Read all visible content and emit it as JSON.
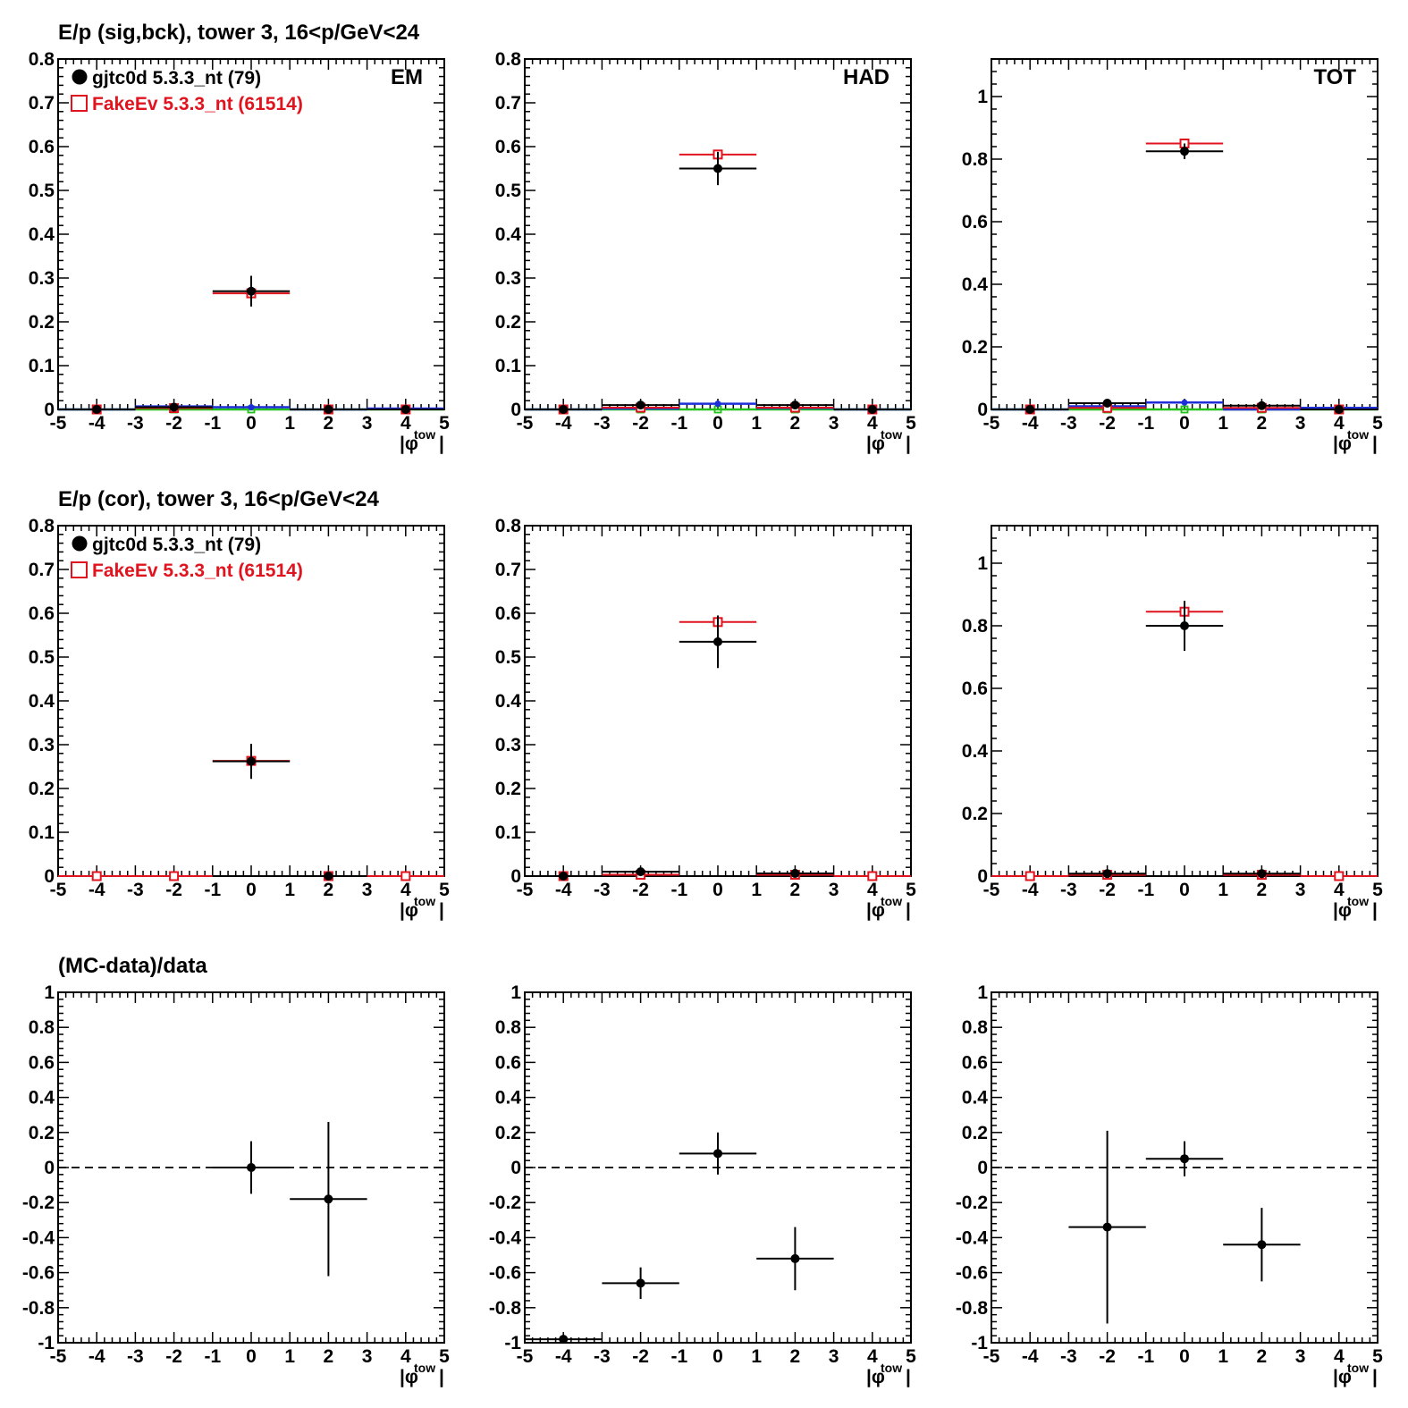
{
  "colors": {
    "data": "#000000",
    "mc": "#e0141e",
    "blue": "#1f2fd8",
    "green": "#22c01a",
    "orange": "#e08a10",
    "frame": "#000000"
  },
  "row_titles": [
    "E/p (sig,bck), tower 3, 16<p/GeV<24",
    "E/p (cor), tower 3, 16<p/GeV<24",
    "(MC-data)/data"
  ],
  "legend": {
    "data_label": "gjtc0d 5.3.3_nt (79)",
    "mc_label": "FakeEv 5.3.3_nt (61514)"
  },
  "xlabel": {
    "main": "|φ",
    "sub": "tow",
    "end": "|"
  },
  "chart_data": [
    {
      "type": "scatter",
      "row": 0,
      "col": 0,
      "corner_label": "EM",
      "xlim": [
        -5,
        5
      ],
      "ylim": [
        0,
        0.8
      ],
      "yticks": [
        "0",
        "0.1",
        "0.2",
        "0.3",
        "0.4",
        "0.5",
        "0.6",
        "0.7",
        "0.8"
      ],
      "xticks": [
        "-5",
        "-4",
        "-3",
        "-2",
        "-1",
        "0",
        "1",
        "2",
        "3",
        "4",
        "5"
      ],
      "series": [
        {
          "name": "gjtc0d 5.3.3_nt (79)",
          "color": "#000000",
          "marker": "dot",
          "points": [
            {
              "x": -4,
              "y": 0.0,
              "err": 0.0
            },
            {
              "x": -2,
              "y": 0.005,
              "err": 0.003
            },
            {
              "x": 0,
              "y": 0.27,
              "err": 0.035
            },
            {
              "x": 2,
              "y": 0.0,
              "err": 0.0
            },
            {
              "x": 4,
              "y": 0.0,
              "err": 0.0
            }
          ]
        },
        {
          "name": "FakeEv 5.3.3_nt (61514)",
          "color": "#e0141e",
          "marker": "open-square",
          "points": [
            {
              "x": -4,
              "y": 0.0,
              "err": 0.0
            },
            {
              "x": -2,
              "y": 0.003,
              "err": 0.0
            },
            {
              "x": 0,
              "y": 0.265,
              "err": 0.0
            },
            {
              "x": 2,
              "y": 0.0,
              "err": 0.0
            },
            {
              "x": 4,
              "y": 0.0,
              "err": 0.0
            }
          ]
        },
        {
          "color": "#1f2fd8",
          "marker": "small-dot",
          "points": [
            {
              "x": -4,
              "y": 0.0,
              "err": 0.0
            },
            {
              "x": -2,
              "y": 0.007,
              "err": 0.0
            },
            {
              "x": 0,
              "y": 0.005,
              "err": 0.0
            },
            {
              "x": 2,
              "y": 0.0,
              "err": 0.0
            },
            {
              "x": 4,
              "y": 0.002,
              "err": 0.0
            }
          ]
        },
        {
          "color": "#22c01a",
          "marker": "small-open",
          "points": [
            {
              "x": -4,
              "y": 0.0,
              "err": 0.0
            },
            {
              "x": -2,
              "y": 0.0,
              "err": 0.0
            },
            {
              "x": 0,
              "y": 0.0,
              "err": 0.0
            },
            {
              "x": 2,
              "y": 0.0,
              "err": 0.0
            },
            {
              "x": 4,
              "y": 0.0,
              "err": 0.0
            }
          ]
        }
      ]
    },
    {
      "type": "scatter",
      "row": 0,
      "col": 1,
      "corner_label": "HAD",
      "xlim": [
        -5,
        5
      ],
      "ylim": [
        0,
        0.8
      ],
      "yticks": [
        "0",
        "0.1",
        "0.2",
        "0.3",
        "0.4",
        "0.5",
        "0.6",
        "0.7",
        "0.8"
      ],
      "xticks": [
        "-5",
        "-4",
        "-3",
        "-2",
        "-1",
        "0",
        "1",
        "2",
        "3",
        "4",
        "5"
      ],
      "series": [
        {
          "name": "gjtc0d 5.3.3_nt (79)",
          "color": "#000000",
          "marker": "dot",
          "points": [
            {
              "x": -4,
              "y": 0.0,
              "err": 0.0
            },
            {
              "x": -2,
              "y": 0.01,
              "err": 0.003
            },
            {
              "x": 0,
              "y": 0.55,
              "err": 0.038
            },
            {
              "x": 2,
              "y": 0.01,
              "err": 0.003
            },
            {
              "x": 4,
              "y": 0.0,
              "err": 0.0
            }
          ]
        },
        {
          "name": "FakeEv 5.3.3_nt (61514)",
          "color": "#e0141e",
          "marker": "open-square",
          "points": [
            {
              "x": -4,
              "y": 0.0,
              "err": 0.0
            },
            {
              "x": -2,
              "y": 0.004,
              "err": 0.0
            },
            {
              "x": 0,
              "y": 0.582,
              "err": 0.0
            },
            {
              "x": 2,
              "y": 0.004,
              "err": 0.0
            },
            {
              "x": 4,
              "y": 0.0,
              "err": 0.0
            }
          ]
        },
        {
          "color": "#1f2fd8",
          "marker": "small-dot",
          "points": [
            {
              "x": -4,
              "y": 0.0,
              "err": 0.0
            },
            {
              "x": -2,
              "y": 0.002,
              "err": 0.0
            },
            {
              "x": 0,
              "y": 0.013,
              "err": 0.0
            },
            {
              "x": 2,
              "y": 0.003,
              "err": 0.0
            },
            {
              "x": 4,
              "y": 0.0,
              "err": 0.0
            }
          ]
        },
        {
          "color": "#22c01a",
          "marker": "small-open",
          "points": [
            {
              "x": -4,
              "y": 0.0,
              "err": 0.0
            },
            {
              "x": -2,
              "y": 0.0,
              "err": 0.0
            },
            {
              "x": 0,
              "y": 0.0,
              "err": 0.0
            },
            {
              "x": 2,
              "y": 0.0,
              "err": 0.0
            },
            {
              "x": 4,
              "y": 0.0,
              "err": 0.0
            }
          ]
        }
      ]
    },
    {
      "type": "scatter",
      "row": 0,
      "col": 2,
      "corner_label": "TOT",
      "xlim": [
        -5,
        5
      ],
      "ylim": [
        0,
        1.12
      ],
      "yticks": [
        "0",
        "0.2",
        "0.4",
        "0.6",
        "0.8",
        "1"
      ],
      "xticks": [
        "-5",
        "-4",
        "-3",
        "-2",
        "-1",
        "0",
        "1",
        "2",
        "3",
        "4",
        "5"
      ],
      "series": [
        {
          "name": "gjtc0d 5.3.3_nt (79)",
          "color": "#000000",
          "marker": "dot",
          "points": [
            {
              "x": -4,
              "y": 0.0,
              "err": 0.0
            },
            {
              "x": -2,
              "y": 0.02,
              "err": 0.004
            },
            {
              "x": 0,
              "y": 0.825,
              "err": 0.025
            },
            {
              "x": 2,
              "y": 0.012,
              "err": 0.004
            },
            {
              "x": 4,
              "y": 0.0,
              "err": 0.0
            }
          ]
        },
        {
          "name": "FakeEv 5.3.3_nt (61514)",
          "color": "#e0141e",
          "marker": "open-square",
          "points": [
            {
              "x": -4,
              "y": 0.0,
              "err": 0.0
            },
            {
              "x": -2,
              "y": 0.005,
              "err": 0.0
            },
            {
              "x": 0,
              "y": 0.85,
              "err": 0.0
            },
            {
              "x": 2,
              "y": 0.005,
              "err": 0.0
            },
            {
              "x": 4,
              "y": 0.0,
              "err": 0.0
            }
          ]
        },
        {
          "color": "#1f2fd8",
          "marker": "small-dot",
          "points": [
            {
              "x": -4,
              "y": 0.0,
              "err": 0.0
            },
            {
              "x": -2,
              "y": 0.01,
              "err": 0.0
            },
            {
              "x": 0,
              "y": 0.022,
              "err": 0.0
            },
            {
              "x": 2,
              "y": 0.0,
              "err": 0.0
            },
            {
              "x": 4,
              "y": 0.005,
              "err": 0.0
            }
          ]
        },
        {
          "color": "#22c01a",
          "marker": "small-open",
          "points": [
            {
              "x": -4,
              "y": 0.0,
              "err": 0.0
            },
            {
              "x": -2,
              "y": 0.0,
              "err": 0.0
            },
            {
              "x": 0,
              "y": 0.0,
              "err": 0.0
            },
            {
              "x": 2,
              "y": 0.0,
              "err": 0.0
            },
            {
              "x": 4,
              "y": 0.0,
              "err": 0.0
            }
          ]
        }
      ]
    },
    {
      "type": "scatter",
      "row": 1,
      "col": 0,
      "xlim": [
        -5,
        5
      ],
      "ylim": [
        0,
        0.8
      ],
      "yticks": [
        "0",
        "0.1",
        "0.2",
        "0.3",
        "0.4",
        "0.5",
        "0.6",
        "0.7",
        "0.8"
      ],
      "xticks": [
        "-5",
        "-4",
        "-3",
        "-2",
        "-1",
        "0",
        "1",
        "2",
        "3",
        "4",
        "5"
      ],
      "series": [
        {
          "name": "gjtc0d 5.3.3_nt (79)",
          "color": "#000000",
          "marker": "dot",
          "points": [
            {
              "x": 0,
              "y": 0.262,
              "err": 0.04
            },
            {
              "x": 2,
              "y": 0.0,
              "err": 0.003
            }
          ]
        },
        {
          "name": "FakeEv 5.3.3_nt (61514)",
          "color": "#e0141e",
          "marker": "open-square",
          "points": [
            {
              "x": -4,
              "y": 0.0,
              "err": 0.0
            },
            {
              "x": -2,
              "y": 0.0,
              "err": 0.0
            },
            {
              "x": 0,
              "y": 0.263,
              "err": 0.0
            },
            {
              "x": 2,
              "y": 0.0,
              "err": 0.0
            },
            {
              "x": 4,
              "y": 0.0,
              "err": 0.0
            }
          ]
        }
      ]
    },
    {
      "type": "scatter",
      "row": 1,
      "col": 1,
      "xlim": [
        -5,
        5
      ],
      "ylim": [
        0,
        0.8
      ],
      "yticks": [
        "0",
        "0.1",
        "0.2",
        "0.3",
        "0.4",
        "0.5",
        "0.6",
        "0.7",
        "0.8"
      ],
      "xticks": [
        "-5",
        "-4",
        "-3",
        "-2",
        "-1",
        "0",
        "1",
        "2",
        "3",
        "4",
        "5"
      ],
      "series": [
        {
          "name": "gjtc0d 5.3.3_nt (79)",
          "color": "#000000",
          "marker": "dot",
          "points": [
            {
              "x": -4,
              "y": 0.0,
              "err": 0.0
            },
            {
              "x": -2,
              "y": 0.01,
              "err": 0.004
            },
            {
              "x": 0,
              "y": 0.535,
              "err": 0.06
            },
            {
              "x": 2,
              "y": 0.006,
              "err": 0.003
            }
          ]
        },
        {
          "name": "FakeEv 5.3.3_nt (61514)",
          "color": "#e0141e",
          "marker": "open-square",
          "points": [
            {
              "x": -4,
              "y": 0.0,
              "err": 0.0
            },
            {
              "x": -2,
              "y": 0.003,
              "err": 0.0
            },
            {
              "x": 0,
              "y": 0.58,
              "err": 0.0
            },
            {
              "x": 2,
              "y": 0.003,
              "err": 0.0
            },
            {
              "x": 4,
              "y": 0.0,
              "err": 0.0
            }
          ]
        }
      ]
    },
    {
      "type": "scatter",
      "row": 1,
      "col": 2,
      "xlim": [
        -5,
        5
      ],
      "ylim": [
        0,
        1.12
      ],
      "yticks": [
        "0",
        "0.2",
        "0.4",
        "0.6",
        "0.8",
        "1"
      ],
      "xticks": [
        "-5",
        "-4",
        "-3",
        "-2",
        "-1",
        "0",
        "1",
        "2",
        "3",
        "4",
        "5"
      ],
      "series": [
        {
          "name": "gjtc0d 5.3.3_nt (79)",
          "color": "#000000",
          "marker": "dot",
          "points": [
            {
              "x": -2,
              "y": 0.008,
              "err": 0.004
            },
            {
              "x": 0,
              "y": 0.8,
              "err": 0.08
            },
            {
              "x": 2,
              "y": 0.008,
              "err": 0.004
            }
          ]
        },
        {
          "name": "FakeEv 5.3.3_nt (61514)",
          "color": "#e0141e",
          "marker": "open-square",
          "points": [
            {
              "x": -4,
              "y": 0.0,
              "err": 0.0
            },
            {
              "x": -2,
              "y": 0.004,
              "err": 0.0
            },
            {
              "x": 0,
              "y": 0.845,
              "err": 0.0
            },
            {
              "x": 2,
              "y": 0.004,
              "err": 0.0
            },
            {
              "x": 4,
              "y": 0.0,
              "err": 0.0
            }
          ]
        }
      ]
    },
    {
      "type": "scatter",
      "row": 2,
      "col": 0,
      "xlim": [
        -5,
        5
      ],
      "ylim": [
        -1,
        1
      ],
      "yticks": [
        "-1",
        "-0.8",
        "-0.6",
        "-0.4",
        "-0.2",
        "0",
        "0.2",
        "0.4",
        "0.6",
        "0.8",
        "1"
      ],
      "xticks": [
        "-5",
        "-4",
        "-3",
        "-2",
        "-1",
        "0",
        "1",
        "2",
        "3",
        "4",
        "5"
      ],
      "reference_line": 0,
      "series": [
        {
          "color": "#000000",
          "marker": "dot",
          "points": [
            {
              "x": 0,
              "y": 0.0,
              "err": 0.15
            },
            {
              "x": 2,
              "y": -0.18,
              "err": 0.44
            }
          ]
        }
      ]
    },
    {
      "type": "scatter",
      "row": 2,
      "col": 1,
      "xlim": [
        -5,
        5
      ],
      "ylim": [
        -1,
        1
      ],
      "yticks": [
        "-1",
        "-0.8",
        "-0.6",
        "-0.4",
        "-0.2",
        "0",
        "0.2",
        "0.4",
        "0.6",
        "0.8",
        "1"
      ],
      "xticks": [
        "-5",
        "-4",
        "-3",
        "-2",
        "-1",
        "0",
        "1",
        "2",
        "3",
        "4",
        "5"
      ],
      "reference_line": 0,
      "series": [
        {
          "color": "#000000",
          "marker": "dot",
          "points": [
            {
              "x": -4,
              "y": -0.98,
              "err": 0.02
            },
            {
              "x": -2,
              "y": -0.66,
              "err": 0.09
            },
            {
              "x": 0,
              "y": 0.08,
              "err": 0.12
            },
            {
              "x": 2,
              "y": -0.52,
              "err": 0.18
            }
          ]
        }
      ]
    },
    {
      "type": "scatter",
      "row": 2,
      "col": 2,
      "xlim": [
        -5,
        5
      ],
      "ylim": [
        -1,
        1
      ],
      "yticks": [
        "-1",
        "-0.8",
        "-0.6",
        "-0.4",
        "-0.2",
        "0",
        "0.2",
        "0.4",
        "0.6",
        "0.8",
        "1"
      ],
      "xticks": [
        "-5",
        "-4",
        "-3",
        "-2",
        "-1",
        "0",
        "1",
        "2",
        "3",
        "4",
        "5"
      ],
      "reference_line": 0,
      "series": [
        {
          "color": "#000000",
          "marker": "dot",
          "points": [
            {
              "x": -2,
              "y": -0.34,
              "err": 0.55
            },
            {
              "x": 0,
              "y": 0.05,
              "err": 0.1
            },
            {
              "x": 2,
              "y": -0.44,
              "err": 0.21
            }
          ]
        }
      ]
    }
  ]
}
